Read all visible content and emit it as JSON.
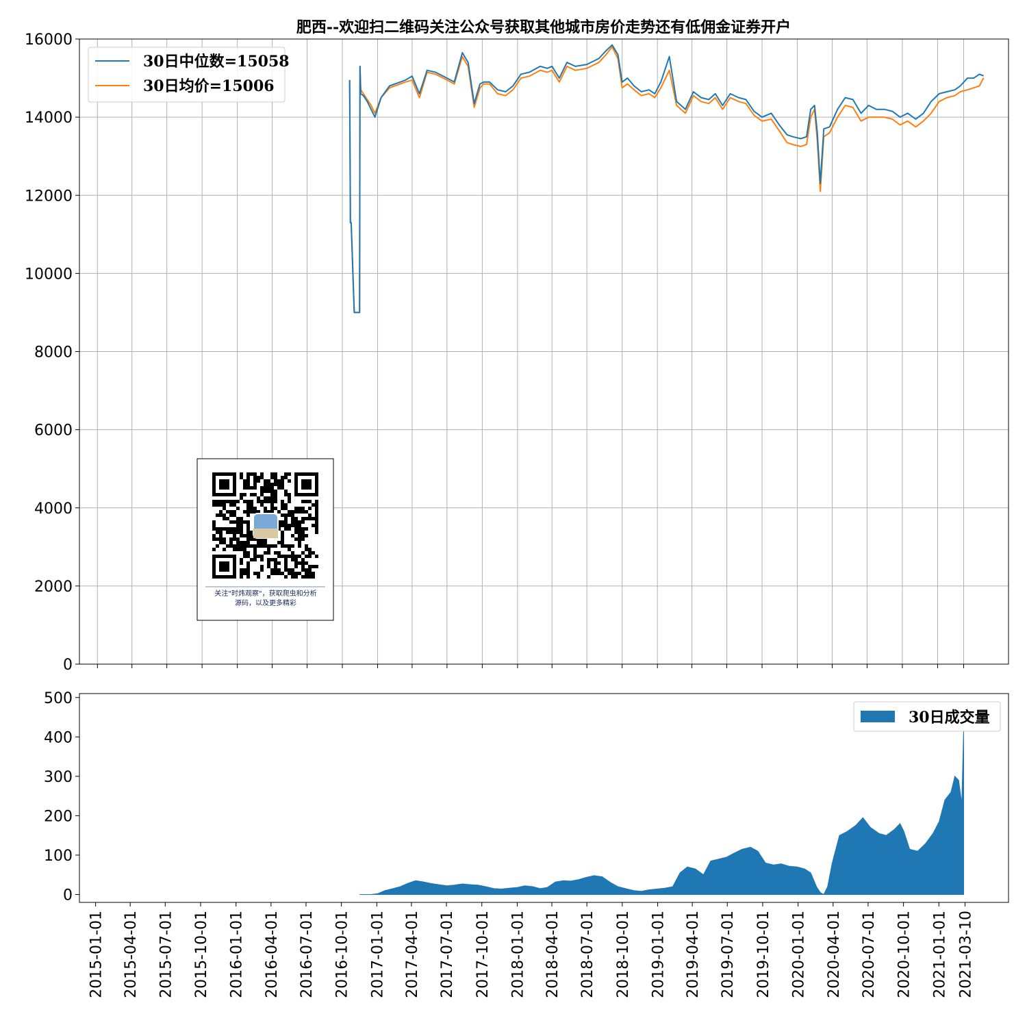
{
  "title": "肥西--欢迎扫二维码关注公众号获取其他城市房价走势还有低佣金证券开户",
  "colors": {
    "median": "#1f77b4",
    "mean": "#ff7f0e",
    "volume": "#1f77b4",
    "grid": "#b0b0b0"
  },
  "chart_data": [
    {
      "type": "line",
      "grid": true,
      "legend": "top-left",
      "ylim": [
        0,
        16000
      ],
      "yticks": [
        0,
        2000,
        4000,
        6000,
        8000,
        10000,
        12000,
        14000,
        16000
      ],
      "xlim": [
        "2014-11-15",
        "2021-07-05"
      ],
      "xticks": [
        "2015-01-01",
        "2015-04-01",
        "2015-07-01",
        "2015-10-01",
        "2016-01-01",
        "2016-04-01",
        "2016-07-01",
        "2016-10-01",
        "2017-01-01",
        "2017-04-01",
        "2017-07-01",
        "2017-10-01",
        "2018-01-01",
        "2018-04-01",
        "2018-07-01",
        "2018-10-01",
        "2019-01-01",
        "2019-04-01",
        "2019-07-01",
        "2019-10-01",
        "2020-01-01",
        "2020-04-01",
        "2020-07-01",
        "2020-10-01",
        "2021-01-01",
        "2021-03-10"
      ],
      "series": [
        {
          "name": "30日中位数=15058",
          "x": [
            "2016-10-20",
            "2016-10-22",
            "2016-10-24",
            "2016-11-01",
            "2016-11-05",
            "2016-11-10",
            "2016-11-15",
            "2016-11-16",
            "2016-11-18",
            "2016-11-25",
            "2016-12-05",
            "2016-12-15",
            "2016-12-25",
            "2017-01-10",
            "2017-02-01",
            "2017-03-01",
            "2017-03-15",
            "2017-04-01",
            "2017-04-20",
            "2017-05-10",
            "2017-06-01",
            "2017-07-01",
            "2017-07-20",
            "2017-08-10",
            "2017-08-25",
            "2017-09-10",
            "2017-09-25",
            "2017-10-05",
            "2017-10-20",
            "2017-11-10",
            "2017-12-01",
            "2017-12-20",
            "2018-01-10",
            "2018-02-01",
            "2018-03-01",
            "2018-03-20",
            "2018-04-01",
            "2018-04-20",
            "2018-05-10",
            "2018-06-01",
            "2018-07-01",
            "2018-08-01",
            "2018-08-20",
            "2018-09-05",
            "2018-09-20",
            "2018-10-01",
            "2018-10-15",
            "2018-11-01",
            "2018-11-20",
            "2018-12-10",
            "2018-12-25",
            "2019-01-10",
            "2019-02-01",
            "2019-02-20",
            "2019-03-15",
            "2019-04-05",
            "2019-04-25",
            "2019-05-15",
            "2019-06-01",
            "2019-06-20",
            "2019-07-10",
            "2019-08-01",
            "2019-08-20",
            "2019-09-10",
            "2019-10-01",
            "2019-10-25",
            "2019-11-15",
            "2019-12-05",
            "2019-12-20",
            "2020-01-10",
            "2020-01-25",
            "2020-02-05",
            "2020-02-15",
            "2020-02-22",
            "2020-03-01",
            "2020-03-10",
            "2020-03-25",
            "2020-04-15",
            "2020-05-05",
            "2020-05-25",
            "2020-06-15",
            "2020-07-05",
            "2020-07-25",
            "2020-08-15",
            "2020-09-05",
            "2020-09-25",
            "2020-10-15",
            "2020-11-05",
            "2020-11-25",
            "2020-12-15",
            "2021-01-05",
            "2021-01-25",
            "2021-02-15",
            "2021-03-01",
            "2021-03-20",
            "2021-04-05",
            "2021-04-20",
            "2021-05-01"
          ],
          "values": [
            14950,
            11300,
            11300,
            9000,
            9000,
            9000,
            9000,
            15300,
            14600,
            14550,
            14400,
            14200,
            14000,
            14500,
            14800,
            14900,
            14950,
            15050,
            14600,
            15200,
            15150,
            15000,
            14900,
            15650,
            15400,
            14350,
            14850,
            14900,
            14900,
            14700,
            14650,
            14800,
            15100,
            15150,
            15300,
            15250,
            15300,
            15000,
            15400,
            15300,
            15350,
            15500,
            15700,
            15850,
            15600,
            14900,
            15000,
            14800,
            14650,
            14700,
            14600,
            14900,
            15550,
            14400,
            14200,
            14650,
            14500,
            14450,
            14600,
            14300,
            14600,
            14500,
            14450,
            14150,
            14000,
            14100,
            13800,
            13550,
            13500,
            13450,
            13500,
            14200,
            14300,
            13600,
            12300,
            13700,
            13750,
            14200,
            14500,
            14450,
            14100,
            14300,
            14200,
            14200,
            14150,
            14000,
            14100,
            13950,
            14100,
            14400,
            14600,
            14650,
            14700,
            14800,
            15000,
            15000,
            15100,
            15058
          ]
        },
        {
          "name": "30日均价=15006",
          "x": [
            "2016-10-20",
            "2016-10-22",
            "2016-10-24",
            "2016-11-01",
            "2016-11-05",
            "2016-11-10",
            "2016-11-15",
            "2016-11-16",
            "2016-11-18",
            "2016-11-25",
            "2016-12-05",
            "2016-12-15",
            "2016-12-25",
            "2017-01-10",
            "2017-02-01",
            "2017-03-01",
            "2017-03-15",
            "2017-04-01",
            "2017-04-20",
            "2017-05-10",
            "2017-06-01",
            "2017-07-01",
            "2017-07-20",
            "2017-08-10",
            "2017-08-25",
            "2017-09-10",
            "2017-09-25",
            "2017-10-05",
            "2017-10-20",
            "2017-11-10",
            "2017-12-01",
            "2017-12-20",
            "2018-01-10",
            "2018-02-01",
            "2018-03-01",
            "2018-03-20",
            "2018-04-01",
            "2018-04-20",
            "2018-05-10",
            "2018-06-01",
            "2018-07-01",
            "2018-08-01",
            "2018-08-20",
            "2018-09-05",
            "2018-09-20",
            "2018-10-01",
            "2018-10-15",
            "2018-11-01",
            "2018-11-20",
            "2018-12-10",
            "2018-12-25",
            "2019-01-10",
            "2019-02-01",
            "2019-02-20",
            "2019-03-15",
            "2019-04-05",
            "2019-04-25",
            "2019-05-15",
            "2019-06-01",
            "2019-06-20",
            "2019-07-10",
            "2019-08-01",
            "2019-08-20",
            "2019-09-10",
            "2019-10-01",
            "2019-10-25",
            "2019-11-15",
            "2019-12-05",
            "2019-12-20",
            "2020-01-10",
            "2020-01-25",
            "2020-02-05",
            "2020-02-15",
            "2020-02-22",
            "2020-03-01",
            "2020-03-10",
            "2020-03-25",
            "2020-04-15",
            "2020-05-05",
            "2020-05-25",
            "2020-06-15",
            "2020-07-05",
            "2020-07-25",
            "2020-08-15",
            "2020-09-05",
            "2020-09-25",
            "2020-10-15",
            "2020-11-05",
            "2020-11-25",
            "2020-12-15",
            "2021-01-05",
            "2021-01-25",
            "2021-02-15",
            "2021-03-01",
            "2021-03-20",
            "2021-04-05",
            "2021-04-20",
            "2021-05-01"
          ],
          "values": [
            14950,
            11300,
            11300,
            9000,
            9000,
            9000,
            9000,
            15300,
            14700,
            14600,
            14450,
            14300,
            14100,
            14500,
            14750,
            14850,
            14900,
            14950,
            14500,
            15150,
            15100,
            14950,
            14850,
            15550,
            15300,
            14250,
            14750,
            14850,
            14850,
            14600,
            14550,
            14700,
            15000,
            15050,
            15200,
            15150,
            15200,
            14900,
            15300,
            15200,
            15250,
            15400,
            15600,
            15800,
            15500,
            14750,
            14850,
            14700,
            14550,
            14600,
            14500,
            14750,
            15200,
            14300,
            14100,
            14550,
            14400,
            14350,
            14500,
            14200,
            14500,
            14400,
            14350,
            14050,
            13900,
            13950,
            13650,
            13350,
            13300,
            13250,
            13300,
            14000,
            14200,
            13400,
            12100,
            13500,
            13600,
            14000,
            14300,
            14250,
            13900,
            14000,
            14000,
            14000,
            13950,
            13800,
            13900,
            13750,
            13900,
            14100,
            14400,
            14500,
            14550,
            14650,
            14700,
            14750,
            14800,
            15006
          ]
        }
      ]
    },
    {
      "type": "area",
      "grid": false,
      "legend": "top-right",
      "ylim": [
        -20,
        510
      ],
      "yticks": [
        0,
        100,
        200,
        300,
        400,
        500
      ],
      "xticks": [
        "2015-01-01",
        "2015-04-01",
        "2015-07-01",
        "2015-10-01",
        "2016-01-01",
        "2016-04-01",
        "2016-07-01",
        "2016-10-01",
        "2017-01-01",
        "2017-04-01",
        "2017-07-01",
        "2017-10-01",
        "2018-01-01",
        "2018-04-01",
        "2018-07-01",
        "2018-10-01",
        "2019-01-01",
        "2019-04-01",
        "2019-07-01",
        "2019-10-01",
        "2020-01-01",
        "2020-04-01",
        "2020-07-01",
        "2020-10-01",
        "2021-01-01",
        "2021-03-10"
      ],
      "series": [
        {
          "name": "30日成交量",
          "x": [
            "2016-11-15",
            "2016-12-01",
            "2016-12-15",
            "2017-01-01",
            "2017-01-20",
            "2017-02-10",
            "2017-03-01",
            "2017-03-20",
            "2017-04-10",
            "2017-05-01",
            "2017-05-20",
            "2017-06-10",
            "2017-07-01",
            "2017-07-20",
            "2017-08-10",
            "2017-09-01",
            "2017-09-20",
            "2017-10-10",
            "2017-11-01",
            "2017-11-20",
            "2017-12-10",
            "2018-01-01",
            "2018-01-20",
            "2018-02-10",
            "2018-03-01",
            "2018-03-20",
            "2018-04-10",
            "2018-05-01",
            "2018-05-20",
            "2018-06-10",
            "2018-07-01",
            "2018-07-20",
            "2018-08-10",
            "2018-09-01",
            "2018-09-20",
            "2018-10-10",
            "2018-11-01",
            "2018-11-20",
            "2018-12-10",
            "2019-01-01",
            "2019-01-20",
            "2019-02-10",
            "2019-03-01",
            "2019-03-20",
            "2019-04-10",
            "2019-05-01",
            "2019-05-20",
            "2019-06-10",
            "2019-07-01",
            "2019-07-20",
            "2019-08-10",
            "2019-09-01",
            "2019-09-20",
            "2019-10-10",
            "2019-11-01",
            "2019-11-20",
            "2019-12-10",
            "2020-01-01",
            "2020-01-20",
            "2020-02-05",
            "2020-02-20",
            "2020-03-01",
            "2020-03-10",
            "2020-03-20",
            "2020-04-01",
            "2020-04-20",
            "2020-05-10",
            "2020-06-01",
            "2020-06-20",
            "2020-07-10",
            "2020-08-01",
            "2020-08-20",
            "2020-09-10",
            "2020-09-25",
            "2020-10-05",
            "2020-10-20",
            "2020-11-10",
            "2020-12-01",
            "2020-12-20",
            "2021-01-05",
            "2021-01-20",
            "2021-02-05",
            "2021-02-15",
            "2021-02-25",
            "2021-03-05",
            "2021-03-10"
          ],
          "values": [
            0,
            0,
            0,
            2,
            10,
            15,
            20,
            28,
            35,
            32,
            28,
            25,
            22,
            24,
            27,
            25,
            24,
            20,
            15,
            14,
            16,
            18,
            22,
            20,
            15,
            18,
            32,
            35,
            34,
            38,
            44,
            48,
            45,
            30,
            20,
            15,
            10,
            8,
            12,
            14,
            16,
            20,
            55,
            70,
            65,
            50,
            85,
            90,
            95,
            105,
            115,
            120,
            110,
            80,
            75,
            78,
            72,
            70,
            65,
            55,
            20,
            5,
            0,
            20,
            80,
            150,
            160,
            175,
            195,
            170,
            155,
            150,
            165,
            180,
            160,
            115,
            110,
            130,
            155,
            185,
            240,
            260,
            300,
            290,
            230,
            420
          ]
        }
      ]
    }
  ],
  "qr": {
    "caption_line1": "关注\"时炜观察\"，获取爬虫和分析",
    "caption_line2": "源码，以及更多精彩"
  }
}
